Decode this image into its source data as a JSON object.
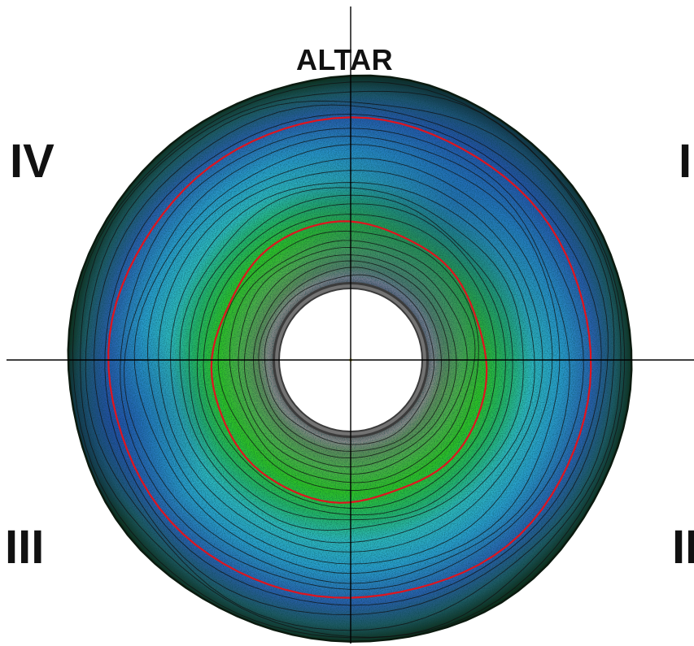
{
  "labels": {
    "top": "ALTAR",
    "quadrant_1": "I",
    "quadrant_2": "II",
    "quadrant_3": "III",
    "quadrant_4": "IV"
  },
  "colors": {
    "outer_rim": "#123a1e",
    "outer_blue": "#2354a6",
    "mid_cyan": "#2fb8c4",
    "inner_green": "#27c21f",
    "core_gray": "#7c7c7c",
    "contour_lines": "#111111",
    "highlight_rings": "#e0141e",
    "axes": "#000000"
  }
}
